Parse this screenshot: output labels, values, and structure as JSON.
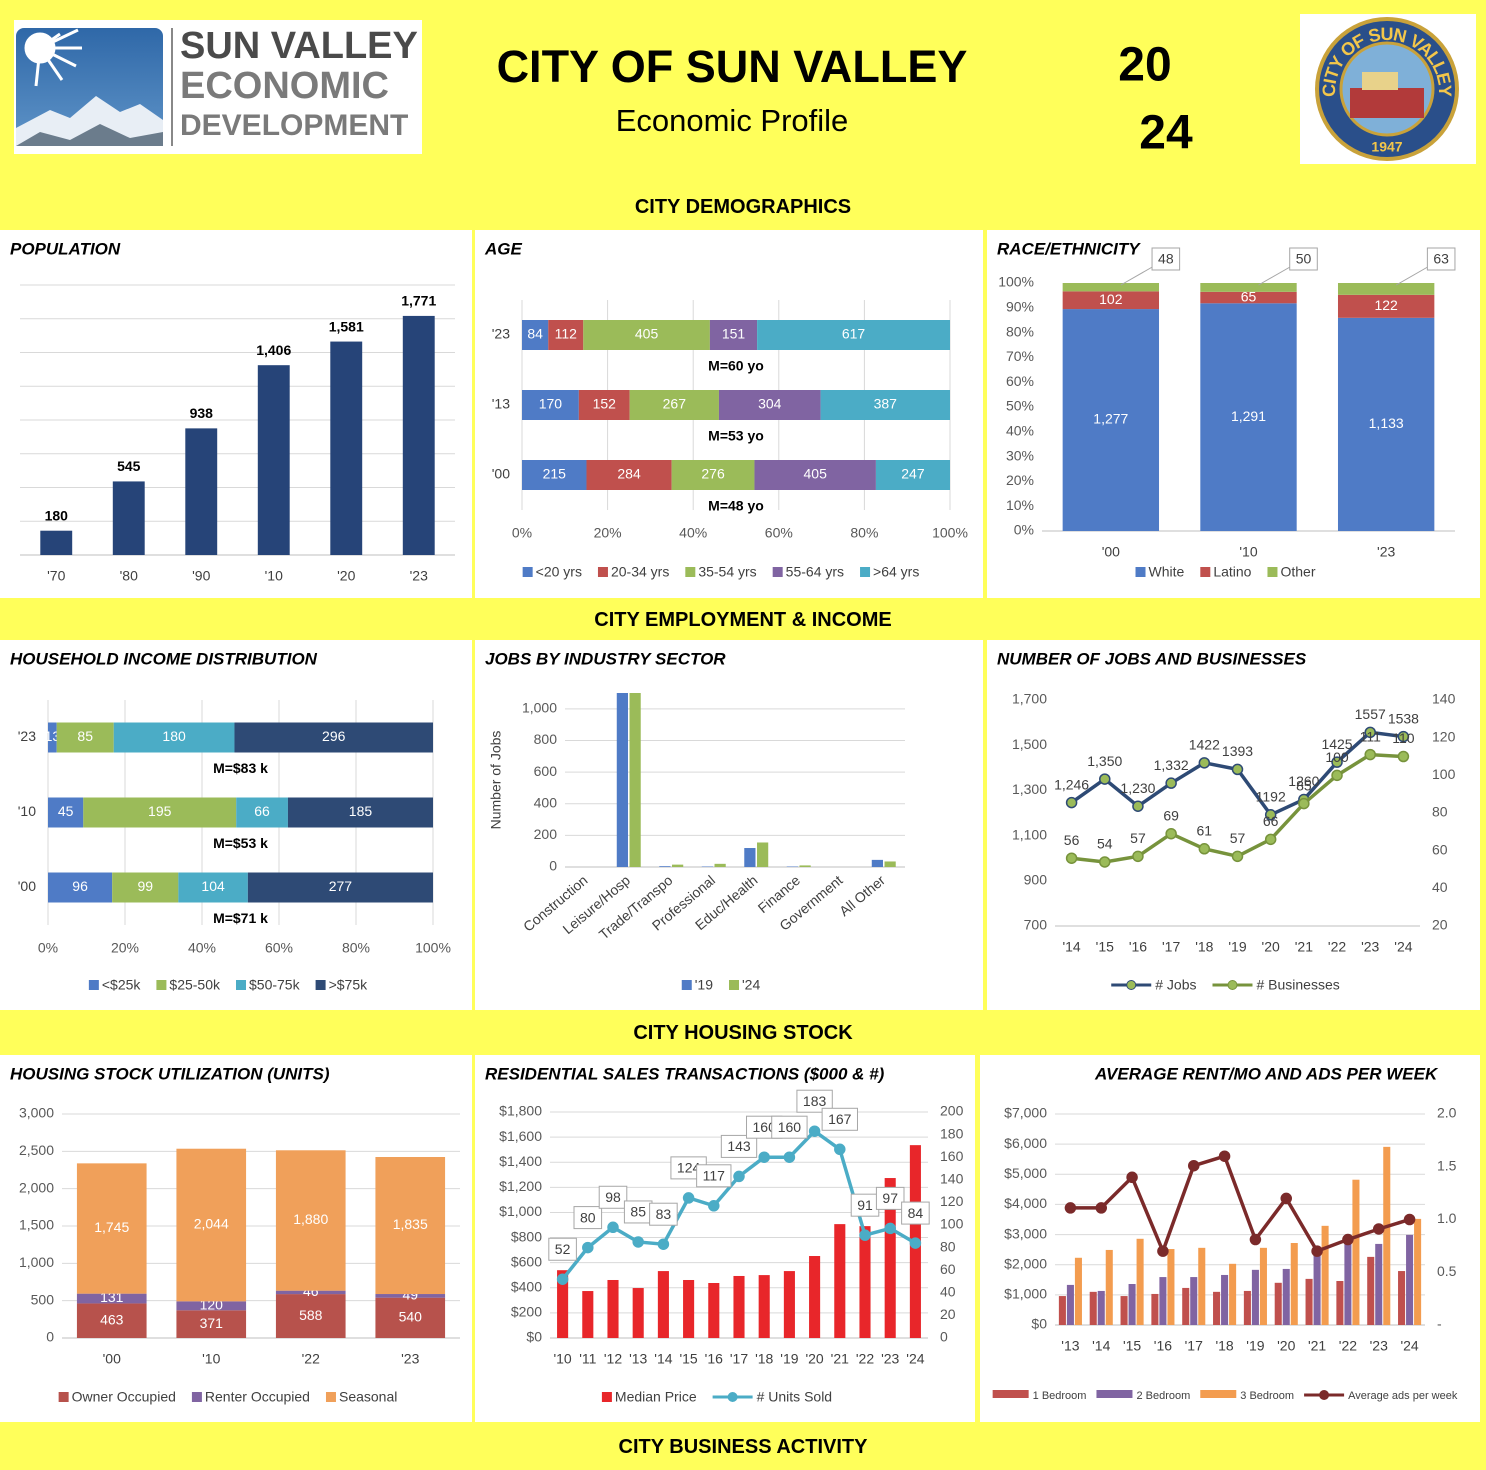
{
  "header": {
    "logo_lines": [
      "SUN VALLEY",
      "ECONOMIC",
      "DEVELOPMENT"
    ],
    "title": "CITY OF SUN VALLEY",
    "subtitle": "Economic Profile",
    "year_parts": [
      "20",
      "24"
    ],
    "seal_text": "CITY OF SUN VALLEY",
    "seal_year": "1947"
  },
  "sections": [
    "CITY DEMOGRAPHICS",
    "CITY EMPLOYMENT & INCOME",
    "CITY HOUSING STOCK",
    "CITY BUSINESS ACTIVITY"
  ],
  "chart_data": [
    {
      "type": "bar",
      "title": "POPULATION",
      "categories": [
        "'70",
        "'80",
        "'90",
        "'10",
        "'20",
        "'23"
      ],
      "values": [
        180,
        545,
        938,
        1406,
        1581,
        1771
      ],
      "value_labels": [
        "180",
        "545",
        "938",
        "1,406",
        "1,581",
        "1,771"
      ],
      "show_values": true,
      "color": "#264478",
      "ylim": [
        0,
        2000
      ],
      "yticks": [
        0,
        250,
        500,
        750,
        1000,
        1250,
        1500,
        1750,
        2000
      ],
      "show_ytick_labels": false,
      "grid": true
    },
    {
      "type": "bar",
      "orientation": "horizontal",
      "stacking": "percent",
      "title": "AGE",
      "categories": [
        "'23",
        "'13",
        "'00"
      ],
      "series": [
        {
          "name": "<20 yrs",
          "color": "#4f7bc6",
          "values": [
            84,
            170,
            215
          ],
          "show_values": true
        },
        {
          "name": "20-34 yrs",
          "color": "#c0504d",
          "values": [
            112,
            152,
            284
          ],
          "show_values": true
        },
        {
          "name": "35-54 yrs",
          "color": "#9bbb59",
          "values": [
            405,
            267,
            276
          ],
          "show_values": true
        },
        {
          "name": "55-64 yrs",
          "color": "#8064a2",
          "values": [
            151,
            304,
            405
          ],
          "show_values": true
        },
        {
          "name": ">64 yrs",
          "color": "#4bacc6",
          "values": [
            617,
            387,
            247
          ],
          "show_values": true
        }
      ],
      "annotations": [
        "M=60 yo",
        "M=53 yo",
        "M=48 yo"
      ],
      "xlim": [
        0,
        100
      ],
      "xticks": [
        {
          "value": 0,
          "label": "0%"
        },
        {
          "value": 20,
          "label": "20%"
        },
        {
          "value": 40,
          "label": "40%"
        },
        {
          "value": 60,
          "label": "60%"
        },
        {
          "value": 80,
          "label": "80%"
        },
        {
          "value": 100,
          "label": "100%"
        }
      ],
      "grid": true,
      "legend": "bottom"
    },
    {
      "type": "bar",
      "stacking": "percent",
      "title": "RACE/ETHNICITY",
      "categories": [
        "'00",
        "'10",
        "'23"
      ],
      "series": [
        {
          "name": "White",
          "color": "#4f7bc6",
          "values": [
            1277,
            1291,
            1133
          ],
          "value_labels": [
            "1,277",
            "1,291",
            "1,133"
          ],
          "show_values": true
        },
        {
          "name": "Latino",
          "color": "#c0504d",
          "values": [
            102,
            65,
            122
          ],
          "show_values": true
        },
        {
          "name": "Other",
          "color": "#9bbb59",
          "values": [
            48,
            50,
            63
          ],
          "show_values": true,
          "label_position": "callout"
        }
      ],
      "ylim": [
        0,
        100
      ],
      "yticks": [
        {
          "value": 0,
          "label": "0%"
        },
        {
          "value": 10,
          "label": "10%"
        },
        {
          "value": 20,
          "label": "20%"
        },
        {
          "value": 30,
          "label": "30%"
        },
        {
          "value": 40,
          "label": "40%"
        },
        {
          "value": 50,
          "label": "50%"
        },
        {
          "value": 60,
          "label": "60%"
        },
        {
          "value": 70,
          "label": "70%"
        },
        {
          "value": 80,
          "label": "80%"
        },
        {
          "value": 90,
          "label": "90%"
        },
        {
          "value": 100,
          "label": "100%"
        }
      ],
      "grid": false,
      "legend": "bottom"
    },
    {
      "type": "bar",
      "orientation": "horizontal",
      "stacking": "percent",
      "title": "HOUSEHOLD INCOME DISTRIBUTION",
      "categories": [
        "'23",
        "'10",
        "'00"
      ],
      "series": [
        {
          "name": "<$25k",
          "color": "#4f7bc6",
          "values": [
            13,
            45,
            96
          ],
          "show_values": true
        },
        {
          "name": "$25-50k",
          "color": "#9bbb59",
          "values": [
            85,
            195,
            99
          ],
          "show_values": true
        },
        {
          "name": "$50-75k",
          "color": "#4bacc6",
          "values": [
            180,
            66,
            104
          ],
          "show_values": true
        },
        {
          "name": ">$75k",
          "color": "#2e4a75",
          "values": [
            296,
            185,
            277
          ],
          "show_values": true
        }
      ],
      "annotations": [
        "M=$83 k",
        "M=$53 k",
        "M=$71 k"
      ],
      "xlim": [
        0,
        100
      ],
      "xticks": [
        {
          "value": 0,
          "label": "0%"
        },
        {
          "value": 20,
          "label": "20%"
        },
        {
          "value": 40,
          "label": "40%"
        },
        {
          "value": 60,
          "label": "60%"
        },
        {
          "value": 80,
          "label": "80%"
        },
        {
          "value": 100,
          "label": "100%"
        }
      ],
      "grid": true,
      "legend": "bottom"
    },
    {
      "type": "bar",
      "title": "JOBS BY INDUSTRY SECTOR",
      "ylabel": "Number of Jobs",
      "categories": [
        "Construction",
        "Leisure/Hosp",
        "Trade/Transpo",
        "Professional",
        "Educ/Health",
        "Finance",
        "Government",
        "All Other"
      ],
      "series": [
        {
          "name": "'19",
          "color": "#4f7bc6",
          "values": [
            0,
            1100,
            5,
            3,
            120,
            3,
            0,
            45
          ]
        },
        {
          "name": "'24",
          "color": "#9bbb59",
          "values": [
            0,
            1100,
            15,
            20,
            155,
            10,
            0,
            35
          ]
        }
      ],
      "ylim": [
        0,
        1100
      ],
      "yticks": [
        0,
        200,
        400,
        600,
        800,
        {
          "value": 1000,
          "label": "1,000"
        }
      ],
      "grid": true,
      "legend": "bottom"
    },
    {
      "type": "line",
      "title": "NUMBER OF JOBS AND BUSINESSES",
      "categories": [
        "'14",
        "'15",
        "'16",
        "'17",
        "'18",
        "'19",
        "'20",
        "'21",
        "'22",
        "'23",
        "'24"
      ],
      "series": [
        {
          "name": "# Jobs",
          "color": "#2e4a75",
          "values": [
            1246,
            1350,
            1230,
            1332,
            1422,
            1393,
            1192,
            1260,
            1425,
            1557,
            1538
          ],
          "value_labels": [
            "1,246",
            "1,350",
            "1,230",
            "1,332",
            "1422",
            "1393",
            "1192",
            "1260",
            "1425",
            "1557",
            "1538"
          ],
          "show_values": true
        },
        {
          "name": "# Businesses",
          "color": "#77933c",
          "axis": "y2",
          "values": [
            56,
            54,
            57,
            69,
            61,
            57,
            66,
            85,
            100,
            111,
            110
          ],
          "show_values": true
        }
      ],
      "ylim": [
        700,
        1700
      ],
      "yticks": [
        700,
        900,
        {
          "value": 1100,
          "label": "1,100"
        },
        {
          "value": 1300,
          "label": "1,300"
        },
        {
          "value": 1500,
          "label": "1,500"
        },
        {
          "value": 1700,
          "label": "1,700"
        }
      ],
      "y2lim": [
        20,
        140
      ],
      "y2ticks": [
        20,
        40,
        60,
        80,
        100,
        120,
        140
      ],
      "grid": false,
      "legend": "bottom"
    },
    {
      "type": "bar",
      "stacking": "normal",
      "title": "HOUSING STOCK UTILIZATION (UNITS)",
      "categories": [
        "'00",
        "'10",
        "'22",
        "'23"
      ],
      "series": [
        {
          "name": "Owner Occupied",
          "color": "#b7524c",
          "values": [
            463,
            371,
            588,
            540
          ],
          "show_values": true
        },
        {
          "name": "Renter Occupied",
          "color": "#8064a2",
          "values": [
            131,
            120,
            46,
            49
          ],
          "show_values": true
        },
        {
          "name": "Seasonal",
          "color": "#f0a05a",
          "values": [
            1745,
            2044,
            1880,
            1835
          ],
          "value_labels": [
            "1,745",
            "2,044",
            "1,880",
            "1,835"
          ],
          "show_values": true
        }
      ],
      "ylim": [
        0,
        3000
      ],
      "yticks": [
        0,
        500,
        {
          "value": 1000,
          "label": "1,000"
        },
        {
          "value": 1500,
          "label": "1,500"
        },
        {
          "value": 2000,
          "label": "2,000"
        },
        {
          "value": 2500,
          "label": "2,500"
        },
        {
          "value": 3000,
          "label": "3,000"
        }
      ],
      "grid": true,
      "legend": "bottom"
    },
    {
      "type": "combo",
      "title": "RESIDENTIAL SALES TRANSACTIONS ($000 & #)",
      "categories": [
        "'10",
        "'11",
        "'12",
        "'13",
        "'14",
        "'15",
        "'16",
        "'17",
        "'18",
        "'19",
        "'20",
        "'21",
        "'22",
        "'23",
        "'24"
      ],
      "series": [
        {
          "name": "Median Price",
          "kind": "bar",
          "color": "#e8262a",
          "values": [
            540,
            374,
            462,
            398,
            533,
            462,
            438,
            494,
            501,
            533,
            653,
            907,
            891,
            1274,
            1536
          ]
        },
        {
          "name": "# Units Sold",
          "kind": "line",
          "axis": "y2",
          "color": "#4bacc6",
          "values": [
            52,
            80,
            98,
            85,
            83,
            124,
            117,
            143,
            160,
            160,
            183,
            167,
            91,
            97,
            84
          ],
          "show_values": true,
          "label_position": "callout"
        }
      ],
      "ylim": [
        0,
        1800
      ],
      "yticks": [
        {
          "value": 0,
          "label": "$0"
        },
        {
          "value": 200,
          "label": "$200"
        },
        {
          "value": 400,
          "label": "$400"
        },
        {
          "value": 600,
          "label": "$600"
        },
        {
          "value": 800,
          "label": "$800"
        },
        {
          "value": 1000,
          "label": "$1,000"
        },
        {
          "value": 1200,
          "label": "$1,200"
        },
        {
          "value": 1400,
          "label": "$1,400"
        },
        {
          "value": 1600,
          "label": "$1,600"
        },
        {
          "value": 1800,
          "label": "$1,800"
        }
      ],
      "y2lim": [
        0,
        200
      ],
      "y2ticks": [
        0,
        20,
        40,
        60,
        80,
        100,
        120,
        140,
        160,
        180,
        200
      ],
      "grid": true,
      "legend": "bottom"
    },
    {
      "type": "combo",
      "title": "AVERAGE RENT/MO AND ADS PER WEEK",
      "categories": [
        "'13",
        "'14",
        "'15",
        "'16",
        "'17",
        "'18",
        "'19",
        "'20",
        "'21",
        "'22",
        "'23",
        "'24"
      ],
      "series": [
        {
          "name": "1 Bedroom",
          "kind": "bar",
          "color": "#c0504d",
          "values": [
            960,
            1100,
            960,
            1030,
            1230,
            1100,
            1130,
            1400,
            1530,
            1460,
            2260,
            1790
          ]
        },
        {
          "name": "2 Bedroom",
          "kind": "bar",
          "color": "#8064a2",
          "values": [
            1330,
            1130,
            1360,
            1590,
            1590,
            1660,
            1830,
            1860,
            2330,
            2820,
            2690,
            2990
          ]
        },
        {
          "name": "3 Bedroom",
          "kind": "bar",
          "color": "#f39c4f",
          "values": [
            2230,
            2490,
            2860,
            2520,
            2560,
            2030,
            2560,
            2720,
            3290,
            4820,
            5910,
            3520
          ]
        },
        {
          "name": "Average ads per week",
          "kind": "line",
          "axis": "y2",
          "color": "#7b2a2a",
          "values": [
            1.11,
            1.11,
            1.4,
            0.7,
            1.51,
            1.6,
            0.81,
            1.2,
            0.7,
            0.81,
            0.91,
            1.0
          ]
        }
      ],
      "ylim": [
        0,
        7000
      ],
      "yticks": [
        {
          "value": 0,
          "label": "$0"
        },
        {
          "value": 1000,
          "label": "$1,000"
        },
        {
          "value": 2000,
          "label": "$2,000"
        },
        {
          "value": 3000,
          "label": "$3,000"
        },
        {
          "value": 4000,
          "label": "$4,000"
        },
        {
          "value": 5000,
          "label": "$5,000"
        },
        {
          "value": 6000,
          "label": "$6,000"
        },
        {
          "value": 7000,
          "label": "$7,000"
        }
      ],
      "y2lim": [
        0,
        2
      ],
      "y2ticks": [
        {
          "value": 0,
          "label": "-"
        },
        0.5,
        {
          "value": 1,
          "label": "1.0"
        },
        1.5,
        {
          "value": 2,
          "label": "2.0"
        }
      ],
      "grid": true,
      "legend": "bottom"
    }
  ]
}
